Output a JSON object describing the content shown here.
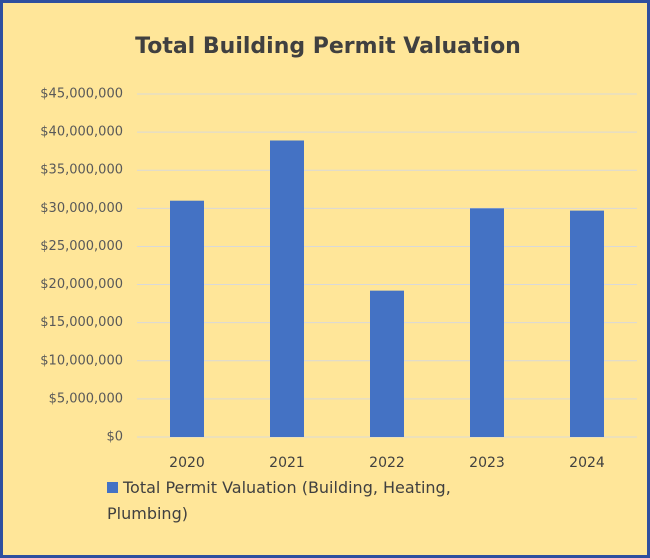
{
  "chart_data": {
    "type": "bar",
    "title": "Total Building Permit Valuation",
    "categories": [
      "2020",
      "2021",
      "2022",
      "2023",
      "2024"
    ],
    "series": [
      {
        "name": "Total Permit Valuation (Building, Heating, Plumbing)",
        "color": "#4472c4",
        "values": [
          31000000,
          38900000,
          19200000,
          30000000,
          29700000
        ]
      }
    ],
    "ylim": [
      0,
      45000000
    ],
    "yticks": [
      {
        "value": 0,
        "label": "$0"
      },
      {
        "value": 5000000,
        "label": "$5,000,000"
      },
      {
        "value": 10000000,
        "label": "$10,000,000"
      },
      {
        "value": 15000000,
        "label": "$15,000,000"
      },
      {
        "value": 20000000,
        "label": "$20,000,000"
      },
      {
        "value": 25000000,
        "label": "$25,000,000"
      },
      {
        "value": 30000000,
        "label": "$30,000,000"
      },
      {
        "value": 35000000,
        "label": "$35,000,000"
      },
      {
        "value": 40000000,
        "label": "$40,000,000"
      },
      {
        "value": 45000000,
        "label": "$45,000,000"
      }
    ],
    "grid": true,
    "legend": "bottom"
  }
}
